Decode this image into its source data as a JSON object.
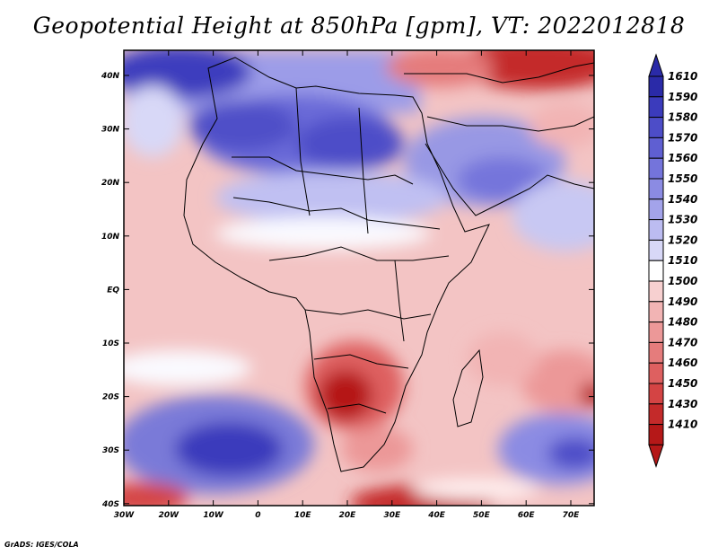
{
  "title": "Geopotential Height at 850hPa [gpm], VT: 2022012818",
  "credit": "GrADS: IGES/COLA",
  "map": {
    "lat_labels": [
      "40N",
      "30N",
      "20N",
      "10N",
      "EQ",
      "10S",
      "20S",
      "30S",
      "40S"
    ],
    "lon_labels": [
      "30W",
      "20W",
      "10W",
      "0",
      "10E",
      "20E",
      "30E",
      "40E",
      "50E",
      "60E",
      "70E"
    ]
  },
  "colorbar": {
    "levels": [
      "1610",
      "1590",
      "1580",
      "1570",
      "1560",
      "1550",
      "1540",
      "1530",
      "1520",
      "1510",
      "1500",
      "1490",
      "1480",
      "1470",
      "1460",
      "1450",
      "1430",
      "1410"
    ],
    "colors": [
      "#2a2aa8",
      "#3b3bbc",
      "#4d4dc8",
      "#5f5fd2",
      "#7474db",
      "#8b8be3",
      "#a3a3ea",
      "#bcbcf1",
      "#d8d8f7",
      "#ffffff",
      "#f7d0d0",
      "#f2b4b4",
      "#ec9898",
      "#e57c7c",
      "#de6060",
      "#d44444",
      "#c42a2a",
      "#b51818"
    ]
  }
}
